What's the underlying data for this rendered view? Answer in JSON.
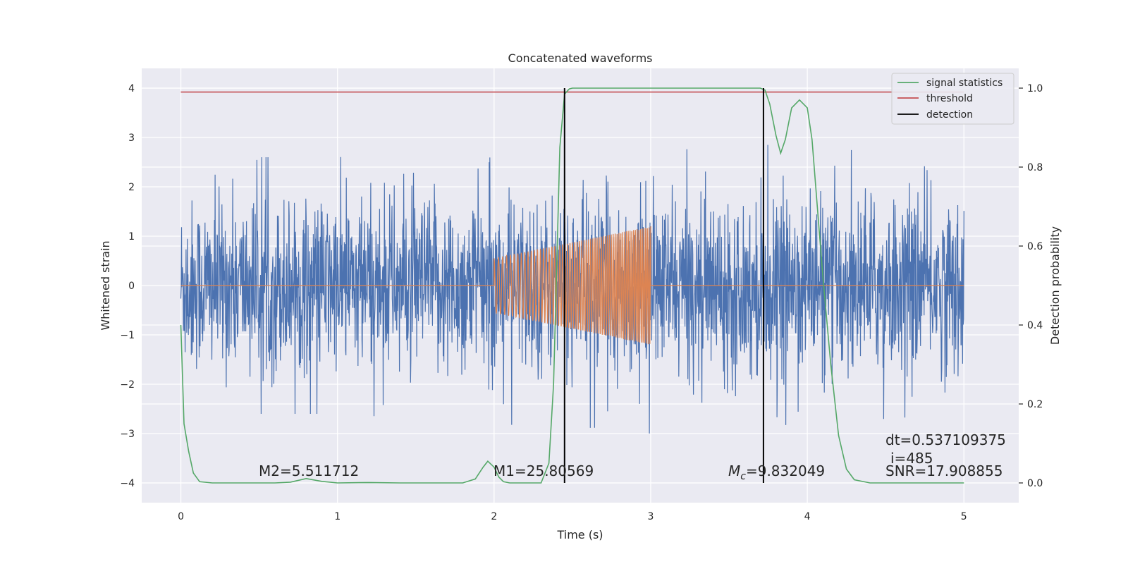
{
  "chart_data": {
    "type": "line",
    "title": "Concatenated waveforms",
    "xlabel": "Time (s)",
    "ylabel": "Whitened strain",
    "y2label": "Detection probability",
    "xlim": [
      -0.25,
      5.35
    ],
    "ylim": [
      -4.4,
      4.4
    ],
    "y2lim": [
      -0.05,
      1.05
    ],
    "x_ticks": [
      0,
      1,
      2,
      3,
      4,
      5
    ],
    "y_ticks": [
      -4,
      -3,
      -2,
      -1,
      0,
      1,
      2,
      3,
      4
    ],
    "y2_ticks": [
      0.0,
      0.2,
      0.4,
      0.6,
      0.8,
      1.0
    ],
    "x_tick_labels": [
      "0",
      "1",
      "2",
      "3",
      "4",
      "5"
    ],
    "y_tick_labels": [
      "−4",
      "−3",
      "−2",
      "−1",
      "0",
      "1",
      "2",
      "3",
      "4"
    ],
    "y2_tick_labels": [
      "0.0",
      "0.2",
      "0.4",
      "0.6",
      "0.8",
      "1.0"
    ],
    "grid": true,
    "legend_position": "top-right",
    "colors": {
      "strain": "#4c72b0",
      "template": "#dd8452",
      "signal": "#55a868",
      "threshold": "#c44e52",
      "detection": "#000000",
      "background": "#eaeaf2"
    },
    "legend": [
      {
        "label": "signal statistics",
        "color": "#55a868"
      },
      {
        "label": "threshold",
        "color": "#c44e52"
      },
      {
        "label": "detection",
        "color": "#000000"
      }
    ],
    "series": [
      {
        "name": "signal statistics",
        "axis": "right",
        "x": [
          0,
          0.02,
          0.05,
          0.08,
          0.12,
          0.2,
          0.4,
          0.6,
          0.7,
          0.8,
          0.9,
          1.0,
          1.2,
          1.4,
          1.6,
          1.8,
          1.88,
          1.93,
          1.96,
          2.0,
          2.03,
          2.06,
          2.1,
          2.2,
          2.3,
          2.35,
          2.38,
          2.4,
          2.42,
          2.45,
          2.48,
          2.5,
          2.6,
          3.0,
          3.5,
          3.7,
          3.73,
          3.76,
          3.8,
          3.83,
          3.86,
          3.9,
          3.95,
          4.0,
          4.03,
          4.06,
          4.1,
          4.15,
          4.2,
          4.25,
          4.3,
          4.4,
          4.6,
          5.0
        ],
        "y": [
          0.4,
          0.15,
          0.08,
          0.025,
          0.003,
          0.0,
          0.0,
          0.0,
          0.002,
          0.011,
          0.004,
          0.0,
          0.001,
          0.0,
          0.0,
          0.0,
          0.01,
          0.04,
          0.055,
          0.04,
          0.015,
          0.003,
          0.0,
          0.0,
          0.0,
          0.05,
          0.25,
          0.55,
          0.85,
          0.985,
          0.998,
          1.0,
          1.0,
          1.0,
          1.0,
          1.0,
          0.995,
          0.96,
          0.88,
          0.835,
          0.87,
          0.95,
          0.97,
          0.95,
          0.87,
          0.72,
          0.52,
          0.3,
          0.12,
          0.035,
          0.008,
          0.0,
          0.0,
          0.0
        ]
      },
      {
        "name": "threshold",
        "axis": "right",
        "x": [
          0,
          5
        ],
        "y": [
          0.99,
          0.99
        ]
      },
      {
        "name": "detection",
        "axis": "right",
        "x": [
          2.45,
          2.45,
          3.72,
          3.72
        ],
        "y": [
          0.0,
          1.0,
          0.0,
          1.0
        ]
      },
      {
        "axis": "left",
        "description_free": true,
        "envelope_x": [
          0,
          1,
          2,
          3,
          4,
          5
        ],
        "envelope_y": [
          2.6,
          2.6,
          2.8,
          3.0,
          2.8,
          2.6
        ]
      },
      {
        "axis": "left",
        "start": 2.0,
        "end": 3.0,
        "amplitude_start": 0.55,
        "amplitude_end": 1.2
      }
    ],
    "annotations": {
      "m2": "M2=5.511712",
      "m1": "M1=25.80569",
      "mc_symbol": "M",
      "mc_sub": "c",
      "mc_value": "=9.832049",
      "dt": "dt=0.537109375",
      "i": "i=485",
      "snr": "SNR=17.908855"
    }
  }
}
